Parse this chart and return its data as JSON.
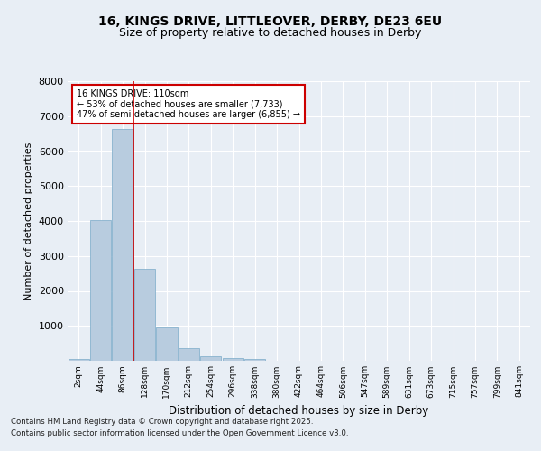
{
  "title1": "16, KINGS DRIVE, LITTLEOVER, DERBY, DE23 6EU",
  "title2": "Size of property relative to detached houses in Derby",
  "xlabel": "Distribution of detached houses by size in Derby",
  "ylabel": "Number of detached properties",
  "categories": [
    "2sqm",
    "44sqm",
    "86sqm",
    "128sqm",
    "170sqm",
    "212sqm",
    "254sqm",
    "296sqm",
    "338sqm",
    "380sqm",
    "422sqm",
    "464sqm",
    "506sqm",
    "547sqm",
    "589sqm",
    "631sqm",
    "673sqm",
    "715sqm",
    "757sqm",
    "799sqm",
    "841sqm"
  ],
  "values": [
    60,
    4020,
    6620,
    2640,
    960,
    350,
    140,
    80,
    50,
    0,
    0,
    0,
    0,
    0,
    0,
    0,
    0,
    0,
    0,
    0,
    0
  ],
  "bar_color": "#b8ccdf",
  "bar_edge_color": "#7aaac8",
  "vline_color": "#cc0000",
  "vline_x": 2.5,
  "annotation_line1": "16 KINGS DRIVE: 110sqm",
  "annotation_line2": "← 53% of detached houses are smaller (7,733)",
  "annotation_line3": "47% of semi-detached houses are larger (6,855) →",
  "annotation_box_color": "#cc0000",
  "ylim": [
    0,
    8000
  ],
  "yticks": [
    0,
    1000,
    2000,
    3000,
    4000,
    5000,
    6000,
    7000,
    8000
  ],
  "bg_color": "#e8eef5",
  "plot_bg_color": "#e8eef5",
  "grid_color": "#ffffff",
  "footer1": "Contains HM Land Registry data © Crown copyright and database right 2025.",
  "footer2": "Contains public sector information licensed under the Open Government Licence v3.0."
}
